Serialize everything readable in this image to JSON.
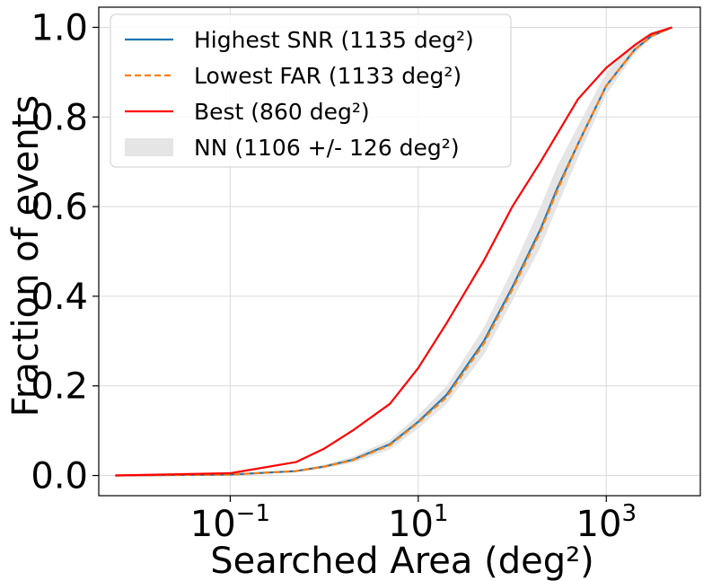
{
  "chart_data": {
    "type": "line",
    "title": "",
    "xlabel": "Searched Area (deg²)",
    "ylabel": "Fraction of events",
    "xscale": "log",
    "xlim": [
      0.004,
      10000
    ],
    "ylim": [
      -0.045,
      1.045
    ],
    "grid": true,
    "legend_position": "top-left",
    "x_ticks": [
      {
        "value": 0.1,
        "base": "10",
        "exp": "−1"
      },
      {
        "value": 10,
        "base": "10",
        "exp": "1"
      },
      {
        "value": 1000,
        "base": "10",
        "exp": "3"
      }
    ],
    "y_ticks": [
      {
        "value": 0.0,
        "label": "0.0"
      },
      {
        "value": 0.2,
        "label": "0.2"
      },
      {
        "value": 0.4,
        "label": "0.4"
      },
      {
        "value": 0.6,
        "label": "0.6"
      },
      {
        "value": 0.8,
        "label": "0.8"
      },
      {
        "value": 1.0,
        "label": "1.0"
      }
    ],
    "series": [
      {
        "name": "Highest SNR (1135 deg²)",
        "color": "#1f77b4",
        "style": "solid",
        "x": [
          0.006,
          0.1,
          0.5,
          1,
          2,
          5,
          10,
          20,
          50,
          100,
          200,
          300,
          500,
          1000,
          2000,
          3000,
          5000
        ],
        "y": [
          0.0,
          0.002,
          0.01,
          0.02,
          0.035,
          0.07,
          0.12,
          0.18,
          0.3,
          0.42,
          0.55,
          0.64,
          0.74,
          0.87,
          0.95,
          0.98,
          1.0
        ]
      },
      {
        "name": "Lowest FAR (1133 deg²)",
        "color": "#ff7f0e",
        "style": "dashed",
        "x": [
          0.006,
          0.1,
          0.5,
          1,
          2,
          5,
          10,
          20,
          50,
          100,
          200,
          300,
          500,
          1000,
          2000,
          3000,
          5000
        ],
        "y": [
          0.0,
          0.002,
          0.01,
          0.02,
          0.034,
          0.068,
          0.118,
          0.175,
          0.295,
          0.415,
          0.545,
          0.635,
          0.74,
          0.87,
          0.95,
          0.98,
          1.0
        ]
      },
      {
        "name": "Best (860 deg²)",
        "color": "#ff0000",
        "style": "solid",
        "x": [
          0.006,
          0.1,
          0.5,
          1,
          2,
          5,
          10,
          20,
          50,
          100,
          200,
          500,
          1000,
          2000,
          3000,
          5000
        ],
        "y": [
          0.0,
          0.005,
          0.03,
          0.06,
          0.1,
          0.16,
          0.24,
          0.34,
          0.48,
          0.6,
          0.7,
          0.84,
          0.91,
          0.96,
          0.985,
          1.0
        ]
      }
    ],
    "band": {
      "name": "NN (1106 +/- 126 deg²)",
      "color": "#e5e5e5",
      "x": [
        0.006,
        0.1,
        0.5,
        1,
        2,
        5,
        10,
        20,
        50,
        100,
        200,
        300,
        500,
        1000,
        2000,
        3000,
        5000
      ],
      "lower": [
        0.0,
        0.001,
        0.008,
        0.016,
        0.028,
        0.058,
        0.105,
        0.16,
        0.27,
        0.39,
        0.51,
        0.6,
        0.71,
        0.85,
        0.94,
        0.975,
        1.0
      ],
      "upper": [
        0.0,
        0.003,
        0.012,
        0.024,
        0.042,
        0.08,
        0.135,
        0.2,
        0.33,
        0.46,
        0.6,
        0.69,
        0.78,
        0.9,
        0.965,
        0.99,
        1.0
      ]
    }
  }
}
